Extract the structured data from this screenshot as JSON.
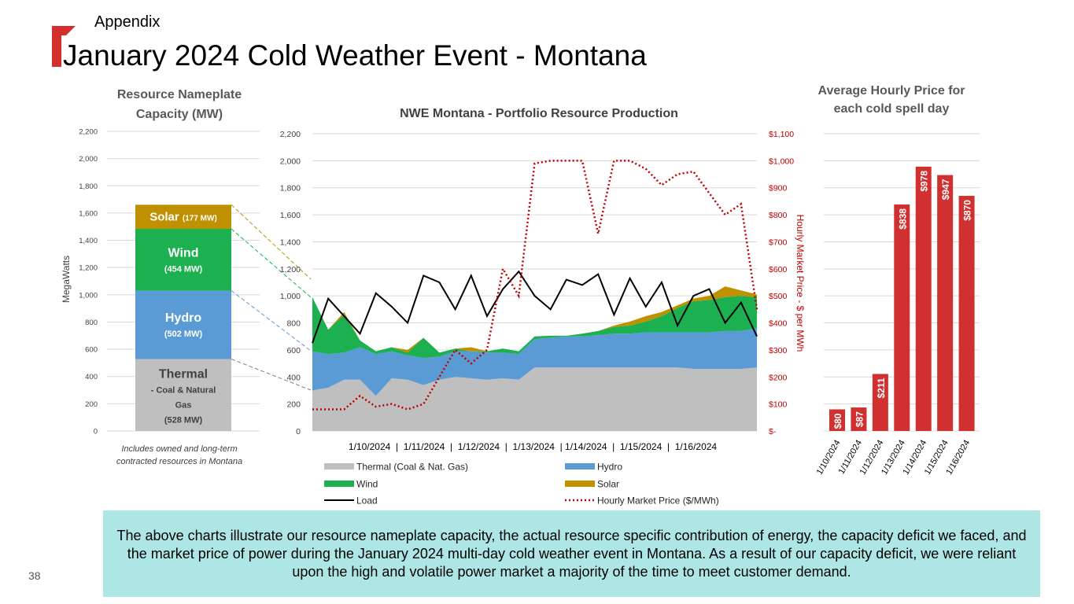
{
  "slide": {
    "section": "Appendix",
    "title": "January 2024 Cold Weather Event - Montana",
    "note": "The above charts illustrate our resource nameplate capacity, the actual resource specific contribution of energy, the capacity deficit we faced, and the market price of power during the January 2024 multi-day cold weather event in Montana. As a result of our capacity deficit, we were reliant upon the high and volatile power market a majority of the time to meet customer demand.",
    "page_number": "38"
  },
  "chart_data": [
    {
      "type": "bar",
      "stacked": true,
      "title": "Resource Nameplate Capacity (MW)",
      "title_lines": [
        "Resource Nameplate",
        "Capacity (MW)"
      ],
      "ylabel": "MegaWatts",
      "ylim": [
        0,
        2200
      ],
      "yticks": [
        "0",
        "200",
        "400",
        "600",
        "800",
        "1,000",
        "1,200",
        "1,400",
        "1,600",
        "1,800",
        "2,000",
        "2,200"
      ],
      "grid": true,
      "segments": [
        {
          "name": "Thermal",
          "value": 528,
          "lines": [
            "Thermal",
            "- Coal & Natural",
            "Gas",
            "(528 MW)"
          ],
          "color": "#bfbfbf"
        },
        {
          "name": "Hydro",
          "value": 502,
          "lines": [
            "Hydro",
            "(502 MW)"
          ],
          "color": "#5b9bd5"
        },
        {
          "name": "Wind",
          "value": 454,
          "lines": [
            "Wind",
            "(454 MW)"
          ],
          "color": "#1cb050"
        },
        {
          "name": "Solar",
          "value": 177,
          "lines": [
            "Solar",
            "(177 MW)"
          ],
          "color": "#bf9000"
        }
      ],
      "footnote_lines": [
        "Includes owned and long-term",
        "contracted resources in Montana"
      ]
    },
    {
      "type": "area",
      "title": "NWE Montana - Portfolio Resource Production",
      "ylim": [
        0,
        2200
      ],
      "y2lim": [
        0,
        1100
      ],
      "yticks": [
        "0",
        "200",
        "400",
        "600",
        "800",
        "1,000",
        "1,200",
        "1,400",
        "1,600",
        "1,800",
        "2,000",
        "2,200"
      ],
      "y2ticks": [
        "$-",
        "$100",
        "$200",
        "$300",
        "$400",
        "$500",
        "$600",
        "$700",
        "$800",
        "$900",
        "$1,000",
        "$1,100"
      ],
      "y2label": "Hourly Market Price - $ per MWh",
      "x_axis_text": "1/10/2024  |  1/11/2024  |  1/12/2024  |  1/13/2024  | 1/14/2024  |  1/15/2024  |  1/16/2024",
      "x_day_index": [
        0,
        6
      ],
      "day_labels": [
        "1/10/2024",
        "1/11/2024",
        "1/12/2024",
        "1/13/2024",
        "1/14/2024",
        "1/15/2024",
        "1/16/2024"
      ],
      "x": [
        0,
        0.25,
        0.5,
        0.75,
        1,
        1.25,
        1.5,
        1.75,
        2,
        2.25,
        2.5,
        2.75,
        3,
        3.25,
        3.5,
        3.75,
        4,
        4.25,
        4.5,
        4.75,
        5,
        5.25,
        5.5,
        5.75,
        6,
        6.25,
        6.5,
        6.75,
        7
      ],
      "series": [
        {
          "name": "Thermal (Coal & Nat. Gas)",
          "kind": "area",
          "color": "#bfbfbf",
          "values": [
            300,
            320,
            380,
            380,
            260,
            390,
            380,
            340,
            380,
            400,
            390,
            380,
            390,
            380,
            470,
            470,
            470,
            470,
            470,
            470,
            470,
            470,
            470,
            470,
            460,
            460,
            460,
            460,
            470
          ]
        },
        {
          "name": "Hydro",
          "kind": "area",
          "color": "#5b9bd5",
          "values": [
            290,
            250,
            200,
            240,
            310,
            200,
            180,
            200,
            170,
            190,
            200,
            200,
            190,
            190,
            210,
            220,
            230,
            230,
            240,
            250,
            250,
            260,
            260,
            260,
            270,
            270,
            280,
            280,
            290
          ]
        },
        {
          "name": "Wind",
          "kind": "area",
          "color": "#1cb050",
          "values": [
            400,
            180,
            280,
            50,
            20,
            30,
            20,
            150,
            30,
            20,
            0,
            10,
            30,
            20,
            20,
            15,
            5,
            20,
            30,
            50,
            60,
            80,
            120,
            180,
            230,
            240,
            250,
            260,
            230
          ]
        },
        {
          "name": "Solar",
          "kind": "area",
          "color": "#bf9000",
          "values": [
            0,
            0,
            20,
            0,
            0,
            0,
            20,
            0,
            0,
            0,
            30,
            0,
            0,
            0,
            0,
            0,
            0,
            0,
            0,
            10,
            30,
            40,
            30,
            20,
            20,
            30,
            80,
            40,
            20
          ]
        },
        {
          "name": "Load",
          "kind": "line",
          "color": "#000000",
          "values": [
            650,
            980,
            850,
            720,
            1020,
            920,
            800,
            1150,
            1100,
            900,
            1150,
            850,
            1050,
            1180,
            1000,
            900,
            1120,
            1080,
            1160,
            860,
            1130,
            920,
            1100,
            780,
            1000,
            1050,
            800,
            950,
            700
          ]
        },
        {
          "name": "Hourly Market Price ($/MWh)",
          "kind": "dotted-line",
          "color": "#c00000",
          "axis": "right",
          "values": [
            80,
            80,
            80,
            130,
            90,
            100,
            80,
            100,
            200,
            300,
            250,
            300,
            600,
            500,
            990,
            1000,
            1000,
            1000,
            730,
            1000,
            1000,
            970,
            910,
            950,
            960,
            880,
            800,
            840,
            450
          ]
        }
      ]
    },
    {
      "type": "bar",
      "title": "Average Hourly Price for each cold spell day",
      "title_lines": [
        "Average Hourly Price for",
        "each cold spell day"
      ],
      "categories": [
        "1/10/2024",
        "1/11/2024",
        "1/12/2024",
        "1/13/2024",
        "1/14/2024",
        "1/15/2024",
        "1/16/2024"
      ],
      "values": [
        80,
        87,
        211,
        838,
        978,
        947,
        870
      ],
      "data_labels": [
        "$80",
        "$87",
        "$211",
        "$838",
        "$978",
        "$947",
        "$870"
      ],
      "ylim": [
        0,
        1100
      ],
      "color": "#d03030",
      "grid": true
    }
  ]
}
